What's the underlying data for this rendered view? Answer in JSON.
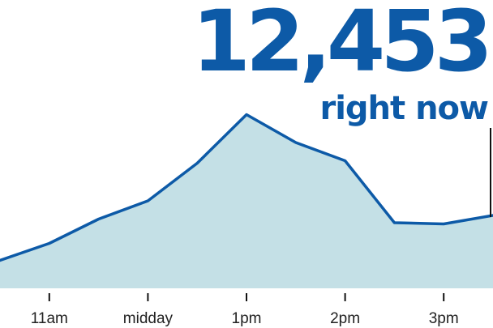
{
  "header": {
    "count": "12,453",
    "caption": "right now"
  },
  "colors": {
    "line": "#0d5aa7",
    "area": "#c4e0e6",
    "text_accent": "#0d5aa7",
    "axis_tick": "#111111",
    "marker": "#111111"
  },
  "chart_data": {
    "type": "area",
    "title": "",
    "xlabel": "",
    "ylabel": "",
    "grid": false,
    "legend": "none",
    "y_axis_shown": false,
    "x_unit": "hours",
    "xlim": [
      10.5,
      15.5
    ],
    "x": [
      10.5,
      11.0,
      11.5,
      12.0,
      12.5,
      13.0,
      13.5,
      14.0,
      14.5,
      15.0,
      15.5
    ],
    "values": [
      23,
      37,
      57,
      72,
      103,
      143,
      120,
      105,
      54,
      53,
      60
    ],
    "ylim": [
      0,
      200
    ],
    "tick_labels": [
      {
        "x": 11,
        "label": "11am"
      },
      {
        "x": 12,
        "label": "midday"
      },
      {
        "x": 13,
        "label": "1pm"
      },
      {
        "x": 14,
        "label": "2pm"
      },
      {
        "x": 15,
        "label": "3pm"
      }
    ],
    "current_marker_x": 15.5
  }
}
